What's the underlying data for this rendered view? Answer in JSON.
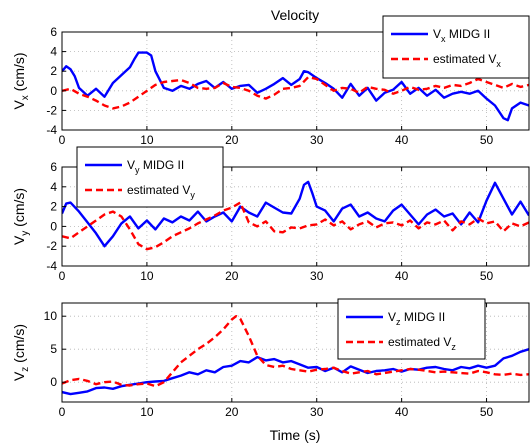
{
  "title": "Velocity",
  "xlabel": "Time (s)",
  "colors": {
    "midg": "#0000ff",
    "estimated": "#ff0000",
    "grid": "#b4b4b4"
  },
  "chart_data": [
    {
      "type": "line",
      "ylabel": {
        "main": "V",
        "sub": "x",
        "unit": " (cm/s)"
      },
      "xlim": [
        0,
        55
      ],
      "ylim": [
        -4,
        6
      ],
      "xticks": [
        0,
        10,
        20,
        30,
        40,
        50
      ],
      "yticks": [
        -4,
        -2,
        0,
        2,
        4,
        6
      ],
      "grid": true,
      "legend_position": "top-right",
      "series": [
        {
          "name": {
            "main": "V",
            "sub": "x",
            "suffix": " MIDG II"
          },
          "style": "solid",
          "x": [
            0,
            0.5,
            1,
            1.5,
            2,
            3,
            4,
            5,
            6,
            7,
            8,
            8.5,
            9,
            9.5,
            10,
            10.5,
            11,
            12,
            13,
            14,
            15,
            16,
            17,
            18,
            19,
            20,
            21,
            22,
            23,
            24,
            25,
            26,
            27,
            28,
            28.5,
            29,
            30,
            31,
            32,
            33,
            34,
            35,
            36,
            37,
            38,
            39,
            40,
            41,
            42,
            43,
            44,
            45,
            46,
            47,
            48,
            49,
            50,
            51,
            52,
            52.5,
            53,
            54,
            55
          ],
          "y": [
            2,
            2.5,
            2.2,
            1.5,
            0.3,
            -0.5,
            0.2,
            -0.6,
            0.8,
            1.6,
            2.4,
            3.2,
            3.9,
            3.9,
            3.9,
            3.6,
            2,
            0.3,
            0,
            0.5,
            0.2,
            0.7,
            1,
            0.3,
            0.9,
            0.2,
            0.5,
            0.6,
            -0.2,
            0.2,
            0.7,
            1.3,
            0.6,
            1.2,
            2,
            1.9,
            1.3,
            0.8,
            0.2,
            -0.7,
            0.7,
            -0.5,
            0.3,
            -1,
            -0.2,
            0.1,
            0.9,
            -0.3,
            0.3,
            -0.5,
            0.1,
            -0.7,
            -0.3,
            -0.1,
            -0.3,
            0,
            -0.8,
            -1.5,
            -2.8,
            -3,
            -1.8,
            -1.2,
            -1.5
          ]
        },
        {
          "name": {
            "main": "estimated V",
            "sub": "x",
            "suffix": ""
          },
          "style": "dashed",
          "x": [
            0,
            1,
            2,
            3,
            4,
            5,
            6,
            7,
            8,
            9,
            10,
            11,
            12,
            13,
            14,
            15,
            16,
            17,
            18,
            19,
            20,
            21,
            22,
            23,
            24,
            25,
            26,
            27,
            28,
            29,
            30,
            31,
            32,
            33,
            34,
            35,
            36,
            37,
            38,
            39,
            40,
            41,
            42,
            43,
            44,
            45,
            46,
            47,
            48,
            49,
            50,
            51,
            52,
            53,
            54,
            55
          ],
          "y": [
            0,
            0.2,
            -0.3,
            -0.6,
            -1,
            -1.5,
            -1.8,
            -1.6,
            -1.2,
            -0.6,
            0,
            0.6,
            0.9,
            1,
            1.1,
            0.8,
            0.3,
            0.2,
            0.3,
            0.8,
            0.4,
            0.3,
            0,
            -0.5,
            -0.8,
            -0.4,
            0.2,
            0.3,
            0.5,
            1.4,
            1.2,
            0.6,
            0,
            0.3,
            0.2,
            -0.2,
            0.4,
            0.2,
            0.1,
            -0.3,
            0,
            0.4,
            0.1,
            0.2,
            0.5,
            0.3,
            0.6,
            0.5,
            0.8,
            1.2,
            0.9,
            0.6,
            0.3,
            0.7,
            0.4,
            0.6
          ]
        }
      ]
    },
    {
      "type": "line",
      "ylabel": {
        "main": "V",
        "sub": "y",
        "unit": " (cm/s)"
      },
      "xlim": [
        0,
        55
      ],
      "ylim": [
        -4,
        6
      ],
      "xticks": [
        0,
        10,
        20,
        30,
        40,
        50
      ],
      "yticks": [
        -4,
        -2,
        0,
        2,
        4,
        6
      ],
      "grid": true,
      "legend_position": "top-left",
      "series": [
        {
          "name": {
            "main": "V",
            "sub": "y",
            "suffix": " MIDG II"
          },
          "style": "solid",
          "x": [
            0,
            0.5,
            1,
            2,
            3,
            4,
            5,
            6,
            7,
            8,
            9,
            10,
            11,
            12,
            13,
            14,
            15,
            16,
            17,
            18,
            19,
            20,
            21,
            22,
            23,
            24,
            25,
            26,
            27,
            28,
            28.5,
            29,
            29.5,
            30,
            31,
            32,
            33,
            34,
            35,
            36,
            37,
            38,
            39,
            40,
            41,
            42,
            43,
            44,
            45,
            46,
            47,
            48,
            49,
            50,
            51,
            52,
            53,
            54,
            55
          ],
          "y": [
            1.3,
            2.3,
            2.4,
            1.5,
            0.4,
            -0.7,
            -2,
            -1,
            0.3,
            1,
            -0.2,
            0.6,
            -0.3,
            0.8,
            0.4,
            1,
            0.6,
            1.5,
            0.5,
            1,
            1.4,
            0.5,
            2,
            1.4,
            1,
            2.4,
            1.9,
            1.4,
            1.3,
            2.8,
            4.2,
            4.5,
            3.3,
            2,
            1.6,
            0.5,
            1.8,
            2.2,
            1,
            1.4,
            0.8,
            0.5,
            1.6,
            2.2,
            1.2,
            0.2,
            1.2,
            1.7,
            1,
            1.3,
            0.2,
            1.4,
            0.4,
            2.6,
            4.4,
            2.8,
            1.2,
            2.5,
            1.1
          ]
        },
        {
          "name": {
            "main": "estimated V",
            "sub": "y",
            "suffix": ""
          },
          "style": "dashed",
          "x": [
            0,
            1,
            2,
            3,
            4,
            5,
            6,
            7,
            8,
            9,
            10,
            11,
            12,
            13,
            14,
            15,
            16,
            17,
            18,
            19,
            20,
            21,
            22,
            23,
            24,
            25,
            26,
            27,
            28,
            29,
            30,
            31,
            32,
            33,
            34,
            35,
            36,
            37,
            38,
            39,
            40,
            41,
            42,
            43,
            44,
            45,
            46,
            47,
            48,
            49,
            50,
            51,
            52,
            53,
            54,
            55
          ],
          "y": [
            -1,
            -1.2,
            -0.6,
            0,
            0.6,
            1.2,
            1.5,
            1,
            -0.3,
            -1.8,
            -2.3,
            -2.1,
            -1.6,
            -1,
            -0.6,
            -0.2,
            0.3,
            0.7,
            1.1,
            1.6,
            1.9,
            2.4,
            0.4,
            0,
            0.5,
            -0.5,
            -0.6,
            -0.1,
            -0.2,
            0.1,
            0.2,
            0.7,
            0.1,
            0.5,
            -0.3,
            0.2,
            0.5,
            -0.1,
            0.3,
            0.4,
            0.1,
            0.6,
            -0.2,
            0.4,
            0.2,
            0.6,
            -0.4,
            0.5,
            0.2,
            0.8,
            0.3,
            0.5,
            -0.5,
            0.3,
            0,
            0.4
          ]
        }
      ]
    },
    {
      "type": "line",
      "ylabel": {
        "main": "V",
        "sub": "z",
        "unit": " (cm/s)"
      },
      "xlim": [
        0,
        55
      ],
      "ylim": [
        -3,
        12
      ],
      "xticks": [
        0,
        10,
        20,
        30,
        40,
        50
      ],
      "yticks": [
        0,
        5,
        10
      ],
      "grid": true,
      "legend_position": "top-right",
      "series": [
        {
          "name": {
            "main": "V",
            "sub": "z",
            "suffix": " MIDG II"
          },
          "style": "solid",
          "x": [
            0,
            1,
            2,
            3,
            4,
            5,
            6,
            7,
            8,
            9,
            10,
            11,
            12,
            13,
            14,
            15,
            16,
            17,
            18,
            19,
            20,
            21,
            22,
            23,
            24,
            25,
            26,
            27,
            28,
            29,
            30,
            31,
            32,
            33,
            34,
            35,
            36,
            37,
            38,
            39,
            40,
            41,
            42,
            43,
            44,
            45,
            46,
            47,
            48,
            49,
            50,
            51,
            52,
            53,
            54,
            55
          ],
          "y": [
            -1.5,
            -1.8,
            -1.6,
            -1.4,
            -0.9,
            -0.8,
            -1,
            -0.6,
            -0.4,
            -0.2,
            0,
            0.1,
            0.2,
            0.6,
            1,
            1.5,
            1.2,
            1.8,
            1.5,
            2.3,
            2.5,
            3.2,
            3,
            3.8,
            3.3,
            3.5,
            3,
            3.2,
            2.7,
            2.2,
            2.3,
            1.7,
            2.2,
            1.5,
            2.4,
            1.9,
            1.4,
            1.7,
            1.8,
            2,
            1.6,
            2,
            1.9,
            2.2,
            2.3,
            2,
            1.8,
            2.3,
            2.1,
            2.5,
            2.2,
            2.5,
            3.6,
            4,
            4.6,
            5
          ]
        },
        {
          "name": {
            "main": "estimated V",
            "sub": "z",
            "suffix": ""
          },
          "style": "dashed",
          "x": [
            0,
            1,
            2,
            3,
            4,
            5,
            6,
            7,
            8,
            9,
            10,
            11,
            12,
            13,
            14,
            15,
            16,
            17,
            18,
            19,
            20,
            20.5,
            21,
            22,
            23,
            24,
            25,
            26,
            27,
            28,
            29,
            30,
            31,
            32,
            33,
            34,
            35,
            36,
            37,
            38,
            39,
            40,
            41,
            42,
            43,
            44,
            45,
            46,
            47,
            48,
            49,
            50,
            51,
            52,
            53,
            54,
            55
          ],
          "y": [
            -0.2,
            0.3,
            0.5,
            0.2,
            -0.3,
            0,
            0.1,
            -0.4,
            -0.5,
            -0.3,
            -0.2,
            -0.6,
            0,
            1.5,
            3,
            4,
            5,
            5.8,
            6.8,
            8,
            9.5,
            10,
            9.6,
            7,
            4,
            2.6,
            2.3,
            2.5,
            2,
            1.8,
            1.6,
            1.9,
            2,
            2.2,
            1.7,
            1.3,
            1.5,
            1.7,
            1.2,
            1.4,
            1.6,
            1.8,
            2,
            1.9,
            1.7,
            1.5,
            1.6,
            1.5,
            1.4,
            1.3,
            1.7,
            1.5,
            1.2,
            1.1,
            1.3,
            1.1,
            1.2
          ]
        }
      ]
    }
  ]
}
